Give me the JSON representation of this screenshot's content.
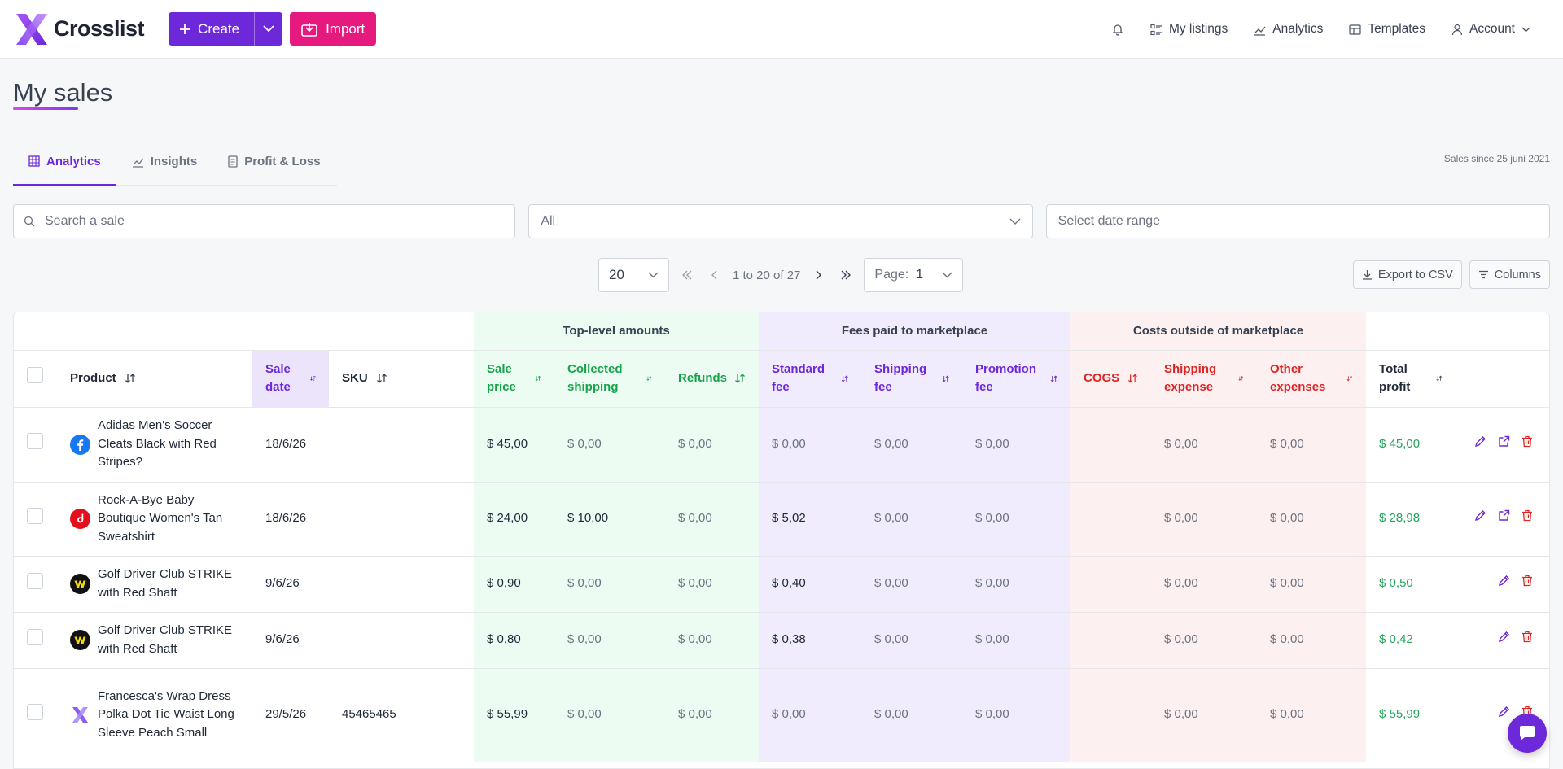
{
  "brand": {
    "name": "Crosslist"
  },
  "topbar": {
    "create_label": "Create",
    "import_label": "Import",
    "nav": [
      {
        "label": "My listings",
        "icon": "list-icon"
      },
      {
        "label": "Analytics",
        "icon": "chart-icon"
      },
      {
        "label": "Templates",
        "icon": "template-icon"
      },
      {
        "label": "Account",
        "icon": "user-icon"
      }
    ]
  },
  "page": {
    "title": "My sales",
    "sales_since": "Sales since 25 juni 2021"
  },
  "tabs": [
    {
      "label": "Analytics",
      "active": true
    },
    {
      "label": "Insights",
      "active": false
    },
    {
      "label": "Profit & Loss",
      "active": false
    }
  ],
  "filters": {
    "search_placeholder": "Search a sale",
    "marketplace_value": "All",
    "date_placeholder": "Select date range"
  },
  "pagination": {
    "page_size": "20",
    "range_text": "1 to 20 of 27",
    "page_label": "Page:",
    "page_value": "1"
  },
  "toolbar": {
    "export_label": "Export to CSV",
    "columns_label": "Columns"
  },
  "table": {
    "groups": {
      "top_level": "Top-level amounts",
      "fees": "Fees paid to marketplace",
      "costs": "Costs outside of marketplace"
    },
    "headers": {
      "product": "Product",
      "sale_date": "Sale date",
      "sku": "SKU",
      "sale_price": "Sale price",
      "collected_shipping": "Collected shipping",
      "refunds": "Refunds",
      "standard_fee": "Standard fee",
      "shipping_fee": "Shipping fee",
      "promotion_fee": "Promotion fee",
      "cogs": "COGS",
      "shipping_expense": "Shipping expense",
      "other_expenses": "Other expenses",
      "total_profit": "Total profit"
    },
    "rows": [
      {
        "product": "Adidas Men's Soccer Cleats Black with Red Stripes?",
        "marketplace": "facebook-icon",
        "date": "18/6/26",
        "sku": "",
        "sale_price": "$ 45,00",
        "collected_shipping": "$ 0,00",
        "refunds": "$ 0,00",
        "standard_fee": "$ 0,00",
        "shipping_fee": "$ 0,00",
        "promotion_fee": "$ 0,00",
        "cogs": "",
        "shipping_expense": "$ 0,00",
        "other_expenses": "$ 0,00",
        "total_profit": "$ 45,00",
        "has_link": true
      },
      {
        "product": "Rock-A-Bye Baby Boutique Women's Tan Sweatshirt",
        "marketplace": "depop-icon",
        "date": "18/6/26",
        "sku": "",
        "sale_price": "$ 24,00",
        "collected_shipping": "$ 10,00",
        "refunds": "$ 0,00",
        "standard_fee": "$ 5,02",
        "shipping_fee": "$ 0,00",
        "promotion_fee": "$ 0,00",
        "cogs": "",
        "shipping_expense": "$ 0,00",
        "other_expenses": "$ 0,00",
        "total_profit": "$ 28,98",
        "has_link": true
      },
      {
        "product": "Golf Driver Club STRIKE with Red Shaft",
        "marketplace": "whatnot-icon",
        "date": "9/6/26",
        "sku": "",
        "sale_price": "$ 0,90",
        "collected_shipping": "$ 0,00",
        "refunds": "$ 0,00",
        "standard_fee": "$ 0,40",
        "shipping_fee": "$ 0,00",
        "promotion_fee": "$ 0,00",
        "cogs": "",
        "shipping_expense": "$ 0,00",
        "other_expenses": "$ 0,00",
        "total_profit": "$ 0,50",
        "has_link": false
      },
      {
        "product": "Golf Driver Club STRIKE with Red Shaft",
        "marketplace": "whatnot-icon",
        "date": "9/6/26",
        "sku": "",
        "sale_price": "$ 0,80",
        "collected_shipping": "$ 0,00",
        "refunds": "$ 0,00",
        "standard_fee": "$ 0,38",
        "shipping_fee": "$ 0,00",
        "promotion_fee": "$ 0,00",
        "cogs": "",
        "shipping_expense": "$ 0,00",
        "other_expenses": "$ 0,00",
        "total_profit": "$ 0,42",
        "has_link": false
      },
      {
        "product": "Francesca's Wrap Dress Polka Dot Tie Waist Long Sleeve Peach Small",
        "marketplace": "crosslist-icon",
        "date": "29/5/26",
        "sku": "45465465",
        "sale_price": "$ 55,99",
        "collected_shipping": "$ 0,00",
        "refunds": "$ 0,00",
        "standard_fee": "$ 0,00",
        "shipping_fee": "$ 0,00",
        "promotion_fee": "$ 0,00",
        "cogs": "",
        "shipping_expense": "$ 0,00",
        "other_expenses": "$ 0,00",
        "total_profit": "$ 55,99",
        "has_link": false
      }
    ]
  }
}
